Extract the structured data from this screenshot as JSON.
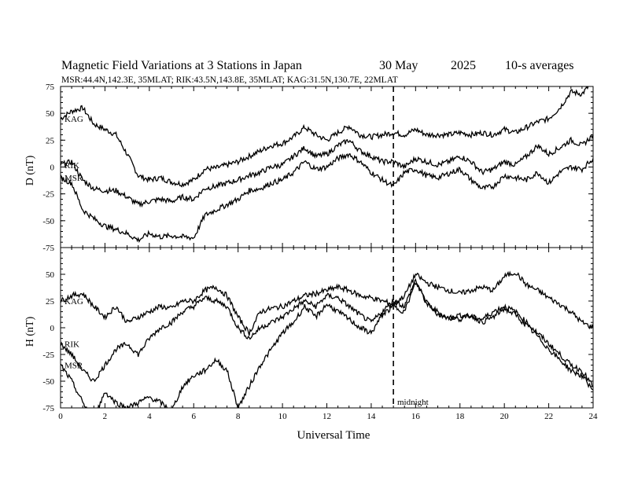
{
  "header": {
    "title_main": "Magnetic Field Variations at 3 Stations in Japan",
    "title_date": "30 May",
    "title_year": "2025",
    "title_avg": "10-s averages",
    "subtitle": "MSR:44.4N,142.3E, 35MLAT;  RIK:43.5N,143.8E, 35MLAT;  KAG:31.5N,130.7E, 22MLAT"
  },
  "annotation": {
    "midnight_label": "midnight",
    "midnight_ut": 15
  },
  "chart_data": [
    {
      "type": "line",
      "ylabel": "D (nT)",
      "xlabel": "",
      "xlim": [
        0,
        24
      ],
      "ylim": [
        -75,
        75
      ],
      "y_ticks": [
        "75",
        "50",
        "25",
        "0",
        "-25",
        "-50",
        "-75"
      ],
      "series": [
        {
          "name": "KAG",
          "x": [
            0,
            0.5,
            1,
            1.5,
            2,
            2.5,
            3,
            3.5,
            4,
            4.5,
            5,
            5.5,
            6,
            6.5,
            7,
            7.5,
            8,
            8.5,
            9,
            9.5,
            10,
            10.5,
            11,
            11.5,
            12,
            12.5,
            13,
            13.5,
            14,
            14.5,
            15,
            15.5,
            16,
            16.5,
            17,
            17.5,
            18,
            18.5,
            19,
            19.5,
            20,
            20.5,
            21,
            21.5,
            22,
            22.5,
            23,
            23.5,
            24
          ],
          "y": [
            45,
            52,
            55,
            40,
            35,
            30,
            12,
            -8,
            -12,
            -10,
            -14,
            -16,
            -12,
            -2,
            -1,
            2,
            5,
            10,
            15,
            20,
            22,
            28,
            37,
            30,
            25,
            32,
            38,
            30,
            28,
            30,
            32,
            30,
            35,
            30,
            30,
            30,
            32,
            30,
            32,
            30,
            35,
            32,
            37,
            42,
            45,
            55,
            70,
            68,
            80
          ]
        },
        {
          "name": "RIK",
          "x": [
            0,
            0.5,
            1,
            1.5,
            2,
            2.5,
            3,
            3.5,
            4,
            4.5,
            5,
            5.5,
            6,
            6.5,
            7,
            7.5,
            8,
            8.5,
            9,
            9.5,
            10,
            10.5,
            11,
            11.5,
            12,
            12.5,
            13,
            13.5,
            14,
            14.5,
            15,
            15.5,
            16,
            16.5,
            17,
            17.5,
            18,
            18.5,
            19,
            19.5,
            20,
            20.5,
            21,
            21.5,
            22,
            22.5,
            23,
            23.5,
            24
          ],
          "y": [
            2,
            5,
            -12,
            -20,
            -22,
            -22,
            -28,
            -35,
            -32,
            -30,
            -32,
            -28,
            -30,
            -20,
            -18,
            -15,
            -12,
            -8,
            -5,
            0,
            2,
            10,
            18,
            10,
            12,
            20,
            25,
            15,
            10,
            5,
            5,
            0,
            8,
            5,
            2,
            5,
            10,
            5,
            -5,
            -2,
            5,
            2,
            10,
            20,
            12,
            18,
            25,
            20,
            30
          ]
        },
        {
          "name": "MSR",
          "x": [
            0,
            0.5,
            1,
            1.5,
            2,
            2.5,
            3,
            3.5,
            4,
            4.5,
            5,
            5.5,
            6,
            6.5,
            7,
            7.5,
            8,
            8.5,
            9,
            9.5,
            10,
            10.5,
            11,
            11.5,
            12,
            12.5,
            13,
            13.5,
            14,
            14.5,
            15,
            15.5,
            16,
            16.5,
            17,
            17.5,
            18,
            18.5,
            19,
            19.5,
            20,
            20.5,
            21,
            21.5,
            22,
            22.5,
            23,
            23.5,
            24
          ],
          "y": [
            -10,
            -15,
            -40,
            -48,
            -55,
            -58,
            -62,
            -68,
            -62,
            -65,
            -64,
            -65,
            -66,
            -45,
            -40,
            -35,
            -30,
            -22,
            -20,
            -15,
            -12,
            -5,
            5,
            -2,
            0,
            8,
            12,
            5,
            -5,
            -12,
            -18,
            -5,
            -2,
            -8,
            -10,
            -6,
            -2,
            -12,
            -20,
            -18,
            -8,
            -10,
            -12,
            -5,
            -15,
            -5,
            0,
            -2,
            8
          ]
        }
      ]
    },
    {
      "type": "line",
      "ylabel": "H (nT)",
      "xlabel": "Universal Time",
      "xlim": [
        0,
        24
      ],
      "ylim": [
        -75,
        75
      ],
      "x_ticks": [
        "0",
        "2",
        "4",
        "6",
        "8",
        "10",
        "12",
        "14",
        "16",
        "18",
        "20",
        "22",
        "24"
      ],
      "y_ticks": [
        "50",
        "25",
        "0",
        "-25",
        "-50",
        "-75"
      ],
      "series": [
        {
          "name": "KAG",
          "x": [
            0,
            0.5,
            1,
            1.5,
            2,
            2.5,
            3,
            3.5,
            4,
            4.5,
            5,
            5.5,
            6,
            6.5,
            7,
            7.5,
            8,
            8.5,
            9,
            9.5,
            10,
            10.5,
            11,
            11.5,
            12,
            12.5,
            13,
            13.5,
            14,
            14.5,
            15,
            15.5,
            16,
            16.5,
            17,
            17.5,
            18,
            18.5,
            19,
            19.5,
            20,
            20.5,
            21,
            21.5,
            22,
            22.5,
            23,
            23.5,
            24
          ],
          "y": [
            25,
            30,
            32,
            20,
            10,
            20,
            5,
            10,
            15,
            20,
            18,
            25,
            25,
            35,
            38,
            30,
            10,
            -5,
            15,
            18,
            20,
            25,
            30,
            32,
            35,
            38,
            35,
            30,
            28,
            25,
            22,
            30,
            50,
            42,
            38,
            35,
            32,
            35,
            38,
            35,
            48,
            52,
            40,
            35,
            28,
            22,
            15,
            5,
            0
          ]
        },
        {
          "name": "RIK",
          "x": [
            0,
            0.5,
            1,
            1.5,
            2,
            2.5,
            3,
            3.5,
            4,
            4.5,
            5,
            5.5,
            6,
            6.5,
            7,
            7.5,
            8,
            8.5,
            9,
            9.5,
            10,
            10.5,
            11,
            11.5,
            12,
            12.5,
            13,
            13.5,
            14,
            14.5,
            15,
            15.5,
            16,
            16.5,
            17,
            17.5,
            18,
            18.5,
            19,
            19.5,
            20,
            20.5,
            21,
            21.5,
            22,
            22.5,
            23,
            23.5,
            24
          ],
          "y": [
            -15,
            -25,
            -40,
            -50,
            -35,
            -20,
            -15,
            -25,
            -10,
            0,
            5,
            15,
            20,
            28,
            25,
            20,
            0,
            -10,
            0,
            5,
            10,
            18,
            25,
            20,
            30,
            28,
            20,
            12,
            5,
            15,
            25,
            20,
            45,
            22,
            15,
            8,
            12,
            10,
            8,
            15,
            20,
            15,
            5,
            -5,
            -15,
            -25,
            -35,
            -40,
            -55
          ]
        },
        {
          "name": "MSR",
          "x": [
            0,
            0.5,
            1,
            1.5,
            2,
            2.5,
            3,
            3.5,
            4,
            4.5,
            5,
            5.5,
            6,
            6.5,
            7,
            7.5,
            8,
            8.5,
            9,
            9.5,
            10,
            10.5,
            11,
            11.5,
            12,
            12.5,
            13,
            13.5,
            14,
            14.5,
            15,
            15.5,
            16,
            16.5,
            17,
            17.5,
            18,
            18.5,
            19,
            19.5,
            20,
            20.5,
            21,
            21.5,
            22,
            22.5,
            23,
            23.5,
            24
          ],
          "y": [
            -35,
            -50,
            -70,
            -85,
            -60,
            -70,
            -75,
            -70,
            -65,
            -70,
            -78,
            -55,
            -45,
            -40,
            -30,
            -40,
            -75,
            -55,
            -35,
            -20,
            -5,
            5,
            20,
            10,
            22,
            15,
            8,
            0,
            -5,
            12,
            20,
            15,
            42,
            25,
            12,
            10,
            8,
            12,
            5,
            10,
            18,
            12,
            2,
            -8,
            -20,
            -30,
            -40,
            -45,
            -58
          ]
        }
      ]
    }
  ]
}
